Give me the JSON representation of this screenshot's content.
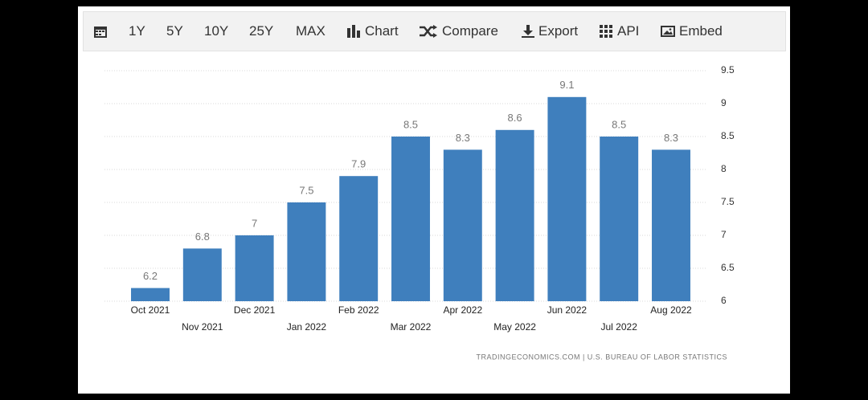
{
  "toolbar": {
    "items": [
      "1Y",
      "5Y",
      "10Y",
      "25Y",
      "MAX",
      "Chart",
      "Compare",
      "Export",
      "API",
      "Embed"
    ]
  },
  "chart_data": {
    "type": "bar",
    "categories": [
      "Oct 2021",
      "Nov 2021",
      "Dec 2021",
      "Jan 2022",
      "Feb 2022",
      "Mar 2022",
      "Apr 2022",
      "May 2022",
      "Jun 2022",
      "Jul 2022",
      "Aug 2022"
    ],
    "values": [
      6.2,
      6.8,
      7,
      7.5,
      7.9,
      8.5,
      8.3,
      8.6,
      9.1,
      8.5,
      8.3
    ],
    "color": "#3f7fbd",
    "ylim": [
      6,
      9.5
    ],
    "yticks": [
      6,
      6.5,
      7,
      7.5,
      8,
      8.5,
      9,
      9.5
    ],
    "grid": true,
    "source": "TRADINGECONOMICS.COM | U.S. BUREAU OF LABOR STATISTICS"
  }
}
